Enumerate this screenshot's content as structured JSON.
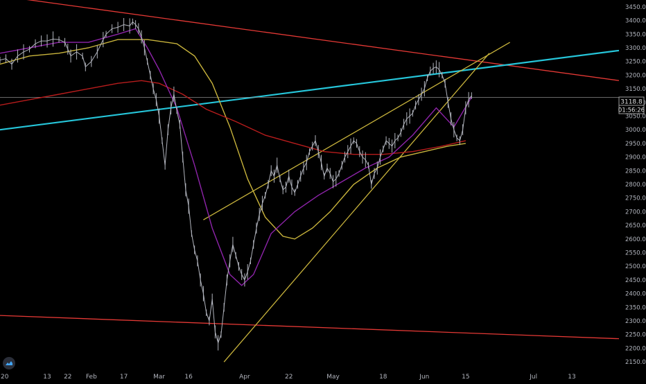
{
  "chart_data": {
    "type": "line",
    "title": "",
    "xlabel": "",
    "ylabel": "",
    "ylim": [
      2125,
      3475
    ],
    "grid": false,
    "colors": {
      "background": "#000000",
      "price": "#b2b5be",
      "ma_purple": "#8e24aa",
      "ma_red": "#b71c1c",
      "ma_yellow": "#c9b43c",
      "trend_red": "#e53935",
      "trend_cyan": "#26c6da",
      "channel_yellow": "#c9b43c",
      "axis_text": "#b2b5be",
      "crosshair": "#8c8c8c"
    },
    "x_ticks": [
      {
        "label": "20",
        "x": 0
      },
      {
        "label": "13",
        "x": 16
      },
      {
        "label": "22",
        "x": 23
      },
      {
        "label": "Feb",
        "x": 31
      },
      {
        "label": "17",
        "x": 42
      },
      {
        "label": "Mar",
        "x": 54
      },
      {
        "label": "16",
        "x": 64
      },
      {
        "label": "Apr",
        "x": 83
      },
      {
        "label": "22",
        "x": 98
      },
      {
        "label": "May",
        "x": 113
      },
      {
        "label": "18",
        "x": 130
      },
      {
        "label": "Jun",
        "x": 144
      },
      {
        "label": "15",
        "x": 158
      },
      {
        "label": "Jul",
        "x": 181
      },
      {
        "label": "13",
        "x": 194
      }
    ],
    "y_ticks": [
      "3450.0",
      "3400.0",
      "3350.0",
      "3300.0",
      "3250.0",
      "3200.0",
      "3150.0",
      "3100.0",
      "3050.0",
      "3000.0",
      "2950.0",
      "2900.0",
      "2850.0",
      "2800.0",
      "2750.0",
      "2700.0",
      "2650.0",
      "2600.0",
      "2550.0",
      "2500.0",
      "2450.0",
      "2400.0",
      "2350.0",
      "2300.0",
      "2250.0",
      "2200.0",
      "2150.0"
    ],
    "last_price_label": "3118.8",
    "countdown_label": "01:56:26",
    "price_series": {
      "name": "",
      "points": [
        [
          0,
          3255
        ],
        [
          2,
          3260
        ],
        [
          4,
          3240
        ],
        [
          6,
          3270
        ],
        [
          8,
          3285
        ],
        [
          10,
          3295
        ],
        [
          12,
          3315
        ],
        [
          14,
          3325
        ],
        [
          16,
          3325
        ],
        [
          18,
          3332
        ],
        [
          20,
          3330
        ],
        [
          22,
          3320
        ],
        [
          23,
          3295
        ],
        [
          24,
          3270
        ],
        [
          26,
          3285
        ],
        [
          28,
          3270
        ],
        [
          29,
          3230
        ],
        [
          31,
          3250
        ],
        [
          33,
          3285
        ],
        [
          35,
          3330
        ],
        [
          36,
          3350
        ],
        [
          38,
          3370
        ],
        [
          40,
          3375
        ],
        [
          42,
          3385
        ],
        [
          44,
          3380
        ],
        [
          45,
          3395
        ],
        [
          46,
          3385
        ],
        [
          47,
          3370
        ],
        [
          48,
          3340
        ],
        [
          49,
          3300
        ],
        [
          50,
          3250
        ],
        [
          51,
          3200
        ],
        [
          52,
          3150
        ],
        [
          53,
          3110
        ],
        [
          54,
          3050
        ],
        [
          55,
          2960
        ],
        [
          56,
          2870
        ],
        [
          57,
          3000
        ],
        [
          58,
          3080
        ],
        [
          59,
          3130
        ],
        [
          60,
          3070
        ],
        [
          61,
          3020
        ],
        [
          62,
          2900
        ],
        [
          63,
          2780
        ],
        [
          64,
          2720
        ],
        [
          65,
          2620
        ],
        [
          66,
          2560
        ],
        [
          67,
          2520
        ],
        [
          68,
          2450
        ],
        [
          69,
          2400
        ],
        [
          70,
          2330
        ],
        [
          71,
          2300
        ],
        [
          72,
          2380
        ],
        [
          73,
          2260
        ],
        [
          74,
          2220
        ],
        [
          75,
          2250
        ],
        [
          76,
          2350
        ],
        [
          77,
          2450
        ],
        [
          78,
          2520
        ],
        [
          79,
          2580
        ],
        [
          80,
          2540
        ],
        [
          81,
          2500
        ],
        [
          82,
          2470
        ],
        [
          83,
          2450
        ],
        [
          84,
          2480
        ],
        [
          85,
          2520
        ],
        [
          86,
          2580
        ],
        [
          87,
          2640
        ],
        [
          88,
          2690
        ],
        [
          89,
          2730
        ],
        [
          90,
          2760
        ],
        [
          91,
          2800
        ],
        [
          92,
          2850
        ],
        [
          93,
          2830
        ],
        [
          94,
          2870
        ],
        [
          95,
          2820
        ],
        [
          96,
          2780
        ],
        [
          97,
          2790
        ],
        [
          98,
          2830
        ],
        [
          99,
          2790
        ],
        [
          100,
          2770
        ],
        [
          101,
          2800
        ],
        [
          102,
          2830
        ],
        [
          103,
          2860
        ],
        [
          104,
          2880
        ],
        [
          105,
          2920
        ],
        [
          106,
          2940
        ],
        [
          107,
          2960
        ],
        [
          108,
          2920
        ],
        [
          109,
          2880
        ],
        [
          110,
          2830
        ],
        [
          111,
          2860
        ],
        [
          112,
          2840
        ],
        [
          113,
          2810
        ],
        [
          114,
          2820
        ],
        [
          115,
          2840
        ],
        [
          116,
          2870
        ],
        [
          117,
          2900
        ],
        [
          118,
          2920
        ],
        [
          119,
          2940
        ],
        [
          120,
          2960
        ],
        [
          121,
          2950
        ],
        [
          122,
          2920
        ],
        [
          123,
          2900
        ],
        [
          124,
          2890
        ],
        [
          125,
          2870
        ],
        [
          126,
          2800
        ],
        [
          127,
          2840
        ],
        [
          128,
          2860
        ],
        [
          129,
          2900
        ],
        [
          130,
          2930
        ],
        [
          131,
          2960
        ],
        [
          132,
          2950
        ],
        [
          133,
          2940
        ],
        [
          134,
          2960
        ],
        [
          135,
          2970
        ],
        [
          136,
          2990
        ],
        [
          137,
          3020
        ],
        [
          138,
          3040
        ],
        [
          139,
          3050
        ],
        [
          140,
          3060
        ],
        [
          141,
          3090
        ],
        [
          142,
          3110
        ],
        [
          143,
          3130
        ],
        [
          144,
          3150
        ],
        [
          145,
          3190
        ],
        [
          146,
          3215
        ],
        [
          147,
          3225
        ],
        [
          148,
          3230
        ],
        [
          149,
          3220
        ],
        [
          150,
          3200
        ],
        [
          151,
          3170
        ],
        [
          152,
          3100
        ],
        [
          153,
          3040
        ],
        [
          154,
          3000
        ],
        [
          155,
          2970
        ],
        [
          156,
          2960
        ],
        [
          157,
          3000
        ],
        [
          158,
          3080
        ],
        [
          159,
          3110
        ],
        [
          160,
          3125
        ]
      ]
    },
    "ma_purple": [
      [
        0,
        3280
      ],
      [
        10,
        3300
      ],
      [
        20,
        3320
      ],
      [
        30,
        3320
      ],
      [
        40,
        3350
      ],
      [
        46,
        3370
      ],
      [
        50,
        3300
      ],
      [
        54,
        3220
      ],
      [
        60,
        3080
      ],
      [
        66,
        2870
      ],
      [
        72,
        2640
      ],
      [
        78,
        2470
      ],
      [
        82,
        2430
      ],
      [
        86,
        2470
      ],
      [
        92,
        2620
      ],
      [
        100,
        2700
      ],
      [
        108,
        2760
      ],
      [
        116,
        2810
      ],
      [
        124,
        2860
      ],
      [
        132,
        2900
      ],
      [
        140,
        2980
      ],
      [
        148,
        3080
      ],
      [
        154,
        3010
      ],
      [
        160,
        3120
      ]
    ],
    "ma_yellow": [
      [
        0,
        3240
      ],
      [
        10,
        3270
      ],
      [
        20,
        3280
      ],
      [
        30,
        3300
      ],
      [
        40,
        3330
      ],
      [
        50,
        3330
      ],
      [
        60,
        3315
      ],
      [
        66,
        3270
      ],
      [
        72,
        3170
      ],
      [
        78,
        3010
      ],
      [
        84,
        2820
      ],
      [
        90,
        2680
      ],
      [
        96,
        2610
      ],
      [
        100,
        2600
      ],
      [
        106,
        2640
      ],
      [
        112,
        2700
      ],
      [
        120,
        2800
      ],
      [
        128,
        2860
      ],
      [
        136,
        2900
      ],
      [
        144,
        2920
      ],
      [
        152,
        2940
      ],
      [
        158,
        2950
      ]
    ],
    "ma_red": [
      [
        0,
        3090
      ],
      [
        10,
        3110
      ],
      [
        20,
        3130
      ],
      [
        30,
        3150
      ],
      [
        40,
        3170
      ],
      [
        48,
        3180
      ],
      [
        54,
        3170
      ],
      [
        62,
        3130
      ],
      [
        70,
        3075
      ],
      [
        80,
        3030
      ],
      [
        90,
        2980
      ],
      [
        100,
        2950
      ],
      [
        110,
        2920
      ],
      [
        120,
        2910
      ],
      [
        130,
        2910
      ],
      [
        140,
        2920
      ],
      [
        150,
        2940
      ],
      [
        158,
        2960
      ]
    ],
    "trend_lines": [
      {
        "color_key": "trend_red",
        "from": [
          0,
          3490
        ],
        "to": [
          210,
          3180
        ]
      },
      {
        "color_key": "trend_cyan",
        "from": [
          0,
          3000
        ],
        "to": [
          210,
          3290
        ]
      },
      {
        "color_key": "trend_red",
        "from": [
          0,
          2320
        ],
        "to": [
          210,
          2235
        ]
      },
      {
        "color_key": "channel_yellow",
        "from": [
          69,
          2670
        ],
        "to": [
          173,
          3320
        ]
      },
      {
        "color_key": "channel_yellow",
        "from": [
          76,
          2150
        ],
        "to": [
          166,
          3280
        ]
      },
      {
        "color_key": "crosshair",
        "from": [
          0,
          3118.8
        ],
        "to": [
          210,
          3118.8
        ]
      }
    ]
  }
}
